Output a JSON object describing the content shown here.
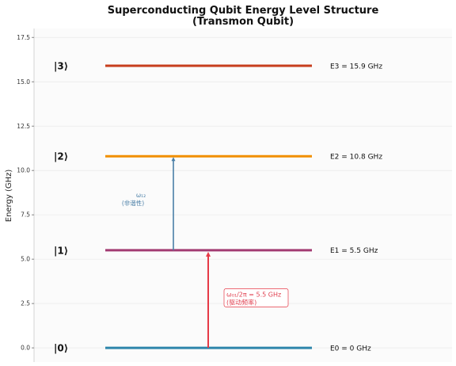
{
  "chart_data": {
    "type": "line",
    "title": "Superconducting Qubit Energy Level Structure",
    "subtitle": "(Transmon Qubit)",
    "ylabel": "Energy (GHz)",
    "ylim": [
      -0.8,
      18.0
    ],
    "yticks": [
      "0.0",
      "2.5",
      "5.0",
      "7.5",
      "10.0",
      "12.5",
      "15.0",
      "17.5"
    ],
    "grid": true,
    "levels": [
      {
        "state": "|0⟩",
        "energy": 0,
        "label": "E0 = 0 GHz",
        "color": "#2e86ab"
      },
      {
        "state": "|1⟩",
        "energy": 5.5,
        "label": "E1 = 5.5 GHz",
        "color": "#a23b72"
      },
      {
        "state": "|2⟩",
        "energy": 10.8,
        "label": "E2 = 10.8 GHz",
        "color": "#f18f01"
      },
      {
        "state": "|3⟩",
        "energy": 15.9,
        "label": "E3 = 15.9 GHz",
        "color": "#c73e1d"
      }
    ],
    "transitions": [
      {
        "from": 0,
        "to": 5.5,
        "color": "#e63946",
        "label_line1": "ω₀₁/2π = 5.5 GHz",
        "label_line2": "(驱动频率)"
      },
      {
        "from": 5.5,
        "to": 10.8,
        "color": "#4a7fa7",
        "label_line1": "ω₁₂",
        "label_line2": "(非谐性)"
      }
    ]
  }
}
